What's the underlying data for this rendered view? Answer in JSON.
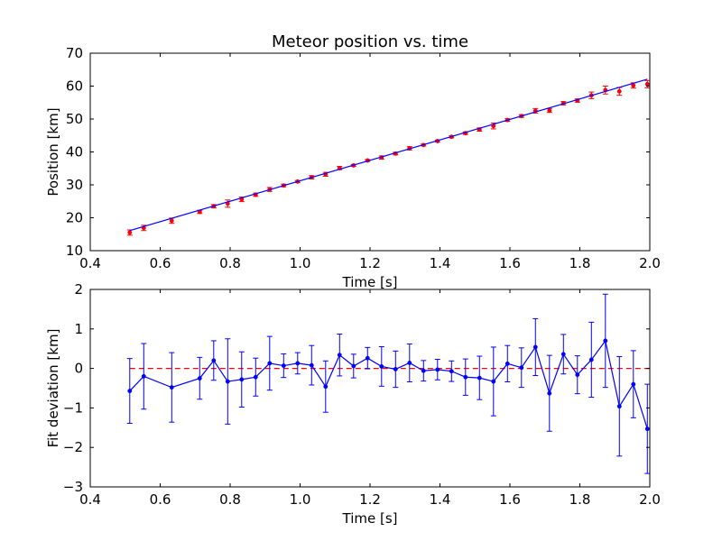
{
  "chart_data": [
    {
      "type": "scatter",
      "title": "Meteor position vs. time",
      "xlabel": "Time [s]",
      "ylabel": "Position [km]",
      "xlim": [
        0.4,
        2.0
      ],
      "ylim": [
        10,
        70
      ],
      "xticks": [
        "0.4",
        "0.6",
        "0.8",
        "1.0",
        "1.2",
        "1.4",
        "1.6",
        "1.8",
        "2.0"
      ],
      "yticks": [
        "10",
        "20",
        "30",
        "40",
        "50",
        "60",
        "70"
      ],
      "grid": false,
      "series": [
        {
          "kind": "points-with-error",
          "color": "#ff0000",
          "x": [
            0.513,
            0.553,
            0.633,
            0.713,
            0.753,
            0.793,
            0.833,
            0.873,
            0.913,
            0.953,
            0.993,
            1.033,
            1.073,
            1.113,
            1.153,
            1.193,
            1.233,
            1.273,
            1.313,
            1.353,
            1.393,
            1.433,
            1.473,
            1.513,
            1.553,
            1.593,
            1.633,
            1.673,
            1.713,
            1.753,
            1.793,
            1.833,
            1.873,
            1.913,
            1.953,
            1.993
          ],
          "y": [
            15.5,
            16.9,
            19.1,
            21.8,
            23.5,
            24.3,
            25.6,
            27.0,
            28.6,
            29.8,
            31.0,
            32.3,
            33.2,
            35.1,
            35.9,
            37.4,
            38.3,
            39.5,
            41.1,
            42.1,
            43.3,
            44.6,
            45.7,
            46.8,
            47.9,
            49.7,
            50.9,
            52.5,
            52.6,
            54.8,
            55.6,
            57.2,
            58.8,
            58.4,
            60.2,
            60.6
          ],
          "err": [
            0.8,
            0.8,
            0.8,
            0.5,
            0.5,
            1.1,
            0.7,
            0.5,
            0.6,
            0.4,
            0.3,
            0.5,
            0.6,
            0.5,
            0.3,
            0.3,
            0.5,
            0.4,
            0.5,
            0.3,
            0.3,
            0.3,
            0.4,
            0.5,
            0.9,
            0.4,
            0.4,
            0.7,
            0.6,
            0.5,
            0.5,
            1.0,
            1.2,
            1.2,
            0.8,
            1.1
          ]
        },
        {
          "kind": "fit-line",
          "color": "#0000ff",
          "x": [
            0.513,
            1.993
          ],
          "y": [
            16.1,
            62.1
          ]
        }
      ]
    },
    {
      "type": "line",
      "xlabel": "Time [s]",
      "ylabel": "Fit deviation [km]",
      "xlim": [
        0.4,
        2.0
      ],
      "ylim": [
        -3,
        2
      ],
      "xticks": [
        "0.4",
        "0.6",
        "0.8",
        "1.0",
        "1.2",
        "1.4",
        "1.6",
        "1.8",
        "2.0"
      ],
      "yticks": [
        "−3",
        "−2",
        "−1",
        "0",
        "1",
        "2"
      ],
      "grid": false,
      "reference_line": {
        "y": 0,
        "style": "dashed",
        "color": "#ff0000"
      },
      "series": [
        {
          "kind": "line-with-error",
          "color": "#0000ff",
          "x": [
            0.513,
            0.553,
            0.633,
            0.713,
            0.753,
            0.793,
            0.833,
            0.873,
            0.913,
            0.953,
            0.993,
            1.033,
            1.073,
            1.113,
            1.153,
            1.193,
            1.233,
            1.273,
            1.313,
            1.353,
            1.393,
            1.433,
            1.473,
            1.513,
            1.553,
            1.593,
            1.633,
            1.673,
            1.713,
            1.753,
            1.793,
            1.833,
            1.873,
            1.913,
            1.953,
            1.993
          ],
          "y": [
            -0.57,
            -0.2,
            -0.48,
            -0.25,
            0.2,
            -0.33,
            -0.28,
            -0.22,
            0.13,
            0.07,
            0.13,
            0.08,
            -0.46,
            0.34,
            0.06,
            0.26,
            0.05,
            -0.02,
            0.14,
            -0.06,
            -0.03,
            -0.07,
            -0.22,
            -0.24,
            -0.33,
            0.12,
            0.02,
            0.54,
            -0.63,
            0.36,
            -0.16,
            0.22,
            0.7,
            -0.96,
            -0.4,
            -1.53
          ],
          "err": [
            0.82,
            0.83,
            0.88,
            0.53,
            0.5,
            1.08,
            0.7,
            0.48,
            0.68,
            0.3,
            0.27,
            0.5,
            0.65,
            0.53,
            0.3,
            0.27,
            0.5,
            0.46,
            0.48,
            0.26,
            0.26,
            0.26,
            0.46,
            0.55,
            0.87,
            0.46,
            0.5,
            0.72,
            0.96,
            0.5,
            0.48,
            0.95,
            1.18,
            1.26,
            0.85,
            1.13
          ]
        }
      ]
    }
  ]
}
